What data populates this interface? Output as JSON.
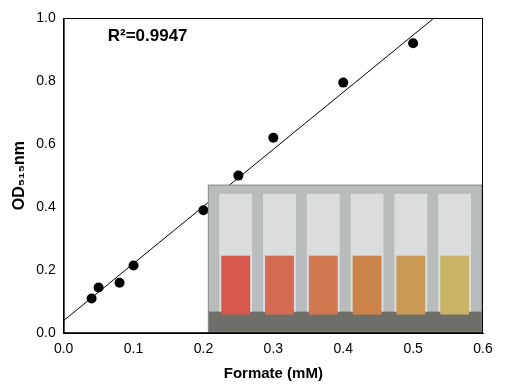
{
  "chart_data": {
    "type": "scatter",
    "annotations": [
      "R²=0.9947"
    ],
    "x_label": "Formate (mM)",
    "y_label": "OD₅₁₅nm",
    "series": [
      {
        "type": "scatter",
        "color": "#000000",
        "marker": "circle",
        "x": [
          0.04,
          0.05,
          0.08,
          0.1,
          0.2,
          0.25,
          0.3,
          0.4,
          0.5
        ],
        "values": [
          0.11,
          0.145,
          0.16,
          0.215,
          0.39,
          0.5,
          0.62,
          0.795,
          0.92
        ]
      },
      {
        "type": "line",
        "color": "#000000",
        "line_style": "solid",
        "x": [
          0,
          0.53
        ],
        "values": [
          0.04,
          1.0
        ]
      }
    ],
    "xlim": [
      0,
      0.6
    ],
    "xticks": [
      {
        "value": 0,
        "label": "0.0"
      },
      0.1,
      0.2,
      0.3,
      0.4,
      0.5,
      0.6
    ],
    "ylim": [
      0,
      1
    ],
    "yticks": [
      {
        "value": 0,
        "label": "0.0"
      },
      0.2,
      0.4,
      0.6,
      0.8,
      {
        "value": 1,
        "label": "1.0"
      }
    ],
    "grid": false
  }
}
